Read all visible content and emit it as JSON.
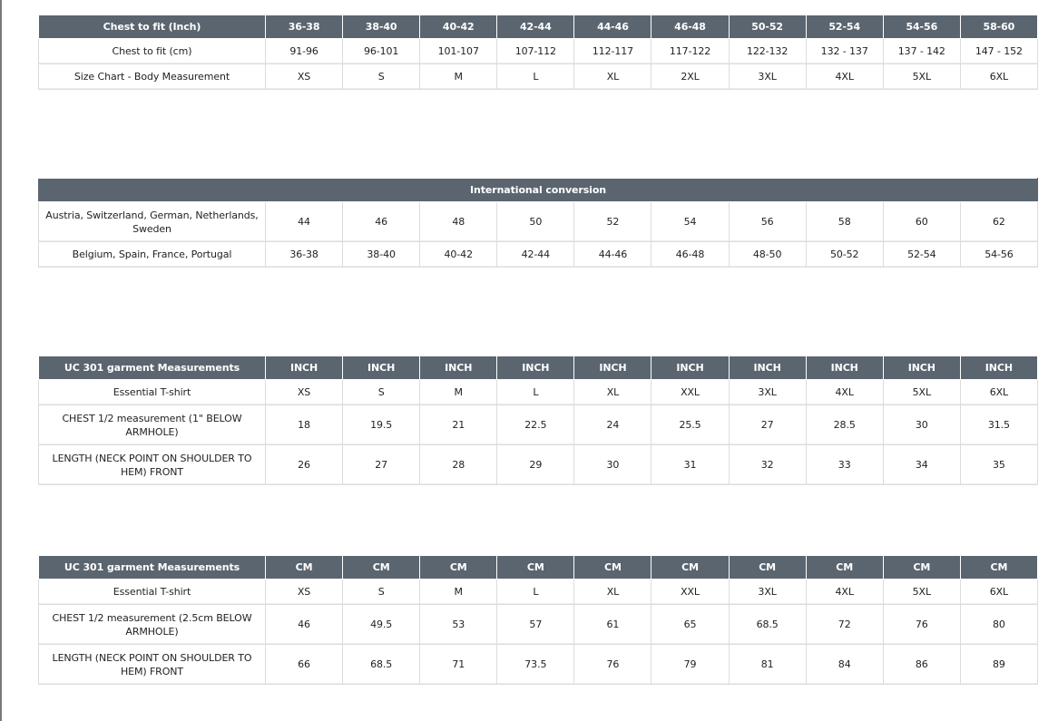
{
  "table1": {
    "header": [
      "Chest to fit (Inch)",
      "36-38",
      "38-40",
      "40-42",
      "42-44",
      "44-46",
      "46-48",
      "50-52",
      "52-54",
      "54-56",
      "58-60"
    ],
    "rows": [
      [
        "Chest to fit (cm)",
        "91-96",
        "96-101",
        "101-107",
        "107-112",
        "112-117",
        "117-122",
        "122-132",
        "132 - 137",
        "137 - 142",
        "147 - 152"
      ],
      [
        "Size Chart - Body Measurement",
        "XS",
        "S",
        "M",
        "L",
        "XL",
        "2XL",
        "3XL",
        "4XL",
        "5XL",
        "6XL"
      ]
    ]
  },
  "table2": {
    "title": "International conversion",
    "rows": [
      [
        "Austria, Switzerland, German, Netherlands, Sweden",
        "44",
        "46",
        "48",
        "50",
        "52",
        "54",
        "56",
        "58",
        "60",
        "62"
      ],
      [
        "Belgium, Spain, France, Portugal",
        "36-38",
        "38-40",
        "40-42",
        "42-44",
        "44-46",
        "46-48",
        "48-50",
        "50-52",
        "52-54",
        "54-56"
      ]
    ]
  },
  "table3": {
    "header": [
      "UC 301 garment Measurements",
      "INCH",
      "INCH",
      "INCH",
      "INCH",
      "INCH",
      "INCH",
      "INCH",
      "INCH",
      "INCH",
      "INCH"
    ],
    "rows": [
      [
        "Essential T-shirt",
        "XS",
        "S",
        "M",
        "L",
        "XL",
        "XXL",
        "3XL",
        "4XL",
        "5XL",
        "6XL"
      ],
      [
        "CHEST 1/2 measurement (1\" BELOW ARMHOLE)",
        "18",
        "19.5",
        "21",
        "22.5",
        "24",
        "25.5",
        "27",
        "28.5",
        "30",
        "31.5"
      ],
      [
        "LENGTH (NECK POINT ON SHOULDER TO HEM) FRONT",
        "26",
        "27",
        "28",
        "29",
        "30",
        "31",
        "32",
        "33",
        "34",
        "35"
      ]
    ]
  },
  "table4": {
    "header": [
      "UC 301 garment Measurements",
      "CM",
      "CM",
      "CM",
      "CM",
      "CM",
      "CM",
      "CM",
      "CM",
      "CM",
      "CM"
    ],
    "rows": [
      [
        "Essential T-shirt",
        "XS",
        "S",
        "M",
        "L",
        "XL",
        "XXL",
        "3XL",
        "4XL",
        "5XL",
        "6XL"
      ],
      [
        "CHEST 1/2 measurement (2.5cm BELOW ARMHOLE)",
        "46",
        "49.5",
        "53",
        "57",
        "61",
        "65",
        "68.5",
        "72",
        "76",
        "80"
      ],
      [
        "LENGTH (NECK POINT ON SHOULDER TO HEM) FRONT",
        "66",
        "68.5",
        "71",
        "73.5",
        "76",
        "79",
        "81",
        "84",
        "86",
        "89"
      ]
    ]
  }
}
